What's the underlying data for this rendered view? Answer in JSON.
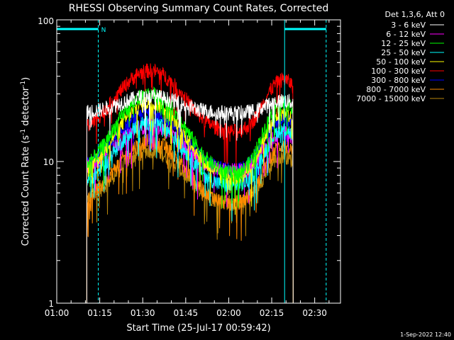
{
  "chart_data": {
    "type": "line",
    "title": "RHESSI Observing Summary Count Rates, Corrected",
    "xlabel": "Start Time (25-Jul-17 00:59:42)",
    "ylabel_main": "Corrected Count Rate (s",
    "ylabel_exp1": "-1",
    "ylabel_mid": " detector",
    "ylabel_exp2": "-1",
    "ylabel_end": ")",
    "yscale": "log",
    "ylim": [
      1,
      100
    ],
    "xlim": [
      "01:00",
      "02:39"
    ],
    "yticks": [
      {
        "value": 1,
        "label": "1"
      },
      {
        "value": 10,
        "label": "10"
      },
      {
        "value": 100,
        "label": "100"
      }
    ],
    "xticks": [
      {
        "minute": 0,
        "label": "01:00"
      },
      {
        "minute": 15,
        "label": "01:15"
      },
      {
        "minute": 30,
        "label": "01:30"
      },
      {
        "minute": 45,
        "label": "01:45"
      },
      {
        "minute": 60,
        "label": "02:00"
      },
      {
        "minute": 75,
        "label": "02:15"
      },
      {
        "minute": 90,
        "label": "02:30"
      }
    ],
    "legend_header": "Det 1,3,6, Att 0",
    "legend_placement": "top-right, outside plot",
    "night_flag_label": "N",
    "night_intervals": [
      {
        "start": "01:00",
        "end": "01:14.5"
      },
      {
        "start": "02:19.5",
        "end": "02:34"
      }
    ],
    "data_window": {
      "start": "01:10.5",
      "end": "02:22.5"
    },
    "series": [
      {
        "name": "3 - 6 keV",
        "color": "#ffffff",
        "base": 22,
        "peak1": 29,
        "peak2": 27
      },
      {
        "name": "6 - 12 keV",
        "color": "#ff00ff",
        "base": 8.5,
        "peak1": 18,
        "peak2": 16
      },
      {
        "name": "12 - 25 keV",
        "color": "#00ff00",
        "base": 8,
        "peak1": 30,
        "peak2": 26
      },
      {
        "name": "25 - 50 keV",
        "color": "#00ffff",
        "base": 6.5,
        "peak1": 19,
        "peak2": 17
      },
      {
        "name": "50 - 100 keV",
        "color": "#ffff00",
        "base": 7.5,
        "peak1": 26,
        "peak2": 22
      },
      {
        "name": "100 - 300 keV",
        "color": "#ff0000",
        "base": 16,
        "peak1": 44,
        "peak2": 38
      },
      {
        "name": "300 - 800 keV",
        "color": "#0000ff",
        "base": 8.5,
        "peak1": 22,
        "peak2": 20
      },
      {
        "name": "800 - 7000 keV",
        "color": "#ff8c00",
        "base": 5,
        "peak1": 14,
        "peak2": 13
      },
      {
        "name": "7000 - 15000 keV",
        "color": "#b8860b",
        "base": 5,
        "peak1": 12,
        "peak2": 11
      }
    ]
  },
  "footer_timestamp": "1-Sep-2022 12:40"
}
